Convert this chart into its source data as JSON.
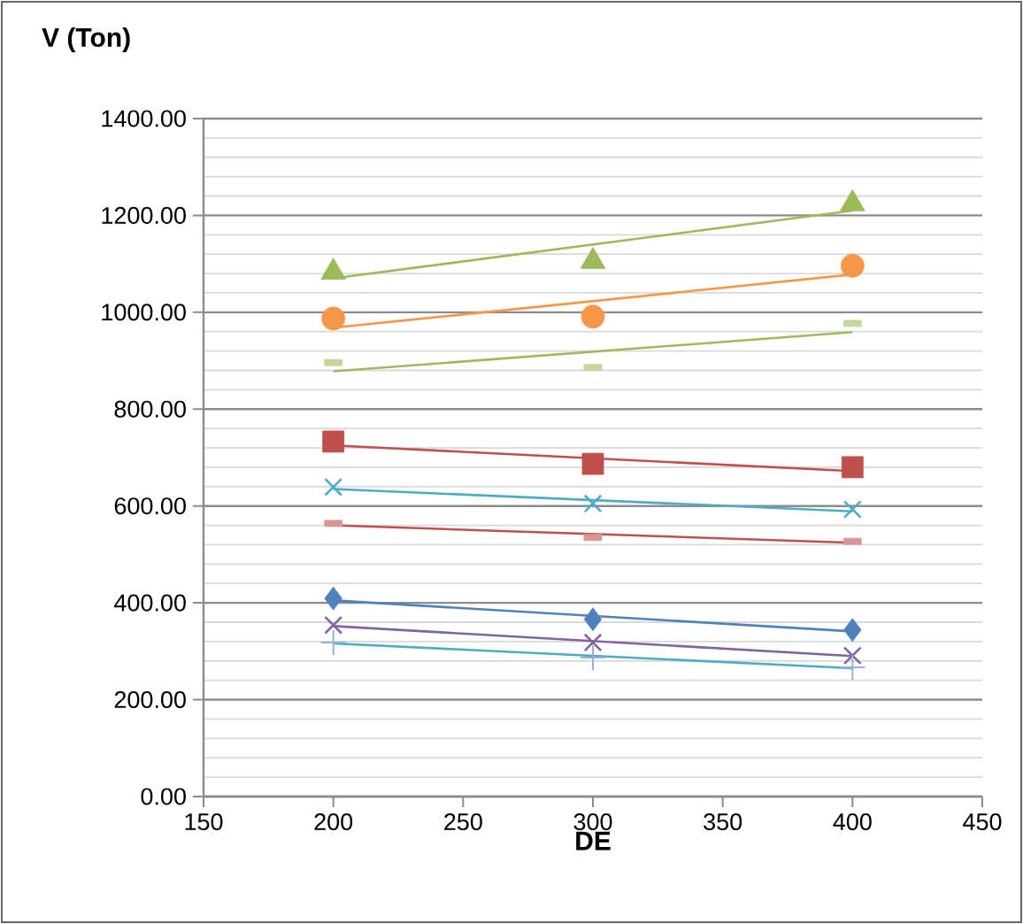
{
  "chart_data": {
    "type": "scatter",
    "ylabel": "V  (Ton)",
    "xlabel": "DE",
    "xlim": [
      150,
      450
    ],
    "xticks": [
      150,
      200,
      250,
      300,
      350,
      400,
      450
    ],
    "ylim": [
      0,
      1400
    ],
    "yticks": [
      {
        "value": 0,
        "label": "0.00"
      },
      {
        "value": 200,
        "label": "200.00"
      },
      {
        "value": 400,
        "label": "400.00"
      },
      {
        "value": 600,
        "label": "600.00"
      },
      {
        "value": 800,
        "label": "800.00"
      },
      {
        "value": 1000,
        "label": "1000.00"
      },
      {
        "value": 1200,
        "label": "1200.00"
      },
      {
        "value": 1400,
        "label": "1400.00"
      }
    ],
    "grid": "y",
    "series": [
      {
        "type": "scatter",
        "marker": "diamond",
        "color": "#4f81bd",
        "x": [
          200,
          300,
          400
        ],
        "values": [
          409,
          366,
          344
        ]
      },
      {
        "type": "scatter",
        "marker": "square",
        "color": "#c0504d",
        "x": [
          200,
          300,
          400
        ],
        "values": [
          733,
          687,
          680
        ]
      },
      {
        "type": "scatter",
        "marker": "triangle",
        "color": "#9bbb59",
        "x": [
          200,
          300,
          400
        ],
        "values": [
          1083,
          1105,
          1224
        ]
      },
      {
        "type": "scatter",
        "marker": "cross",
        "color": "#8064a2",
        "x": [
          200,
          300,
          400
        ],
        "values": [
          354,
          318,
          291
        ]
      },
      {
        "type": "scatter",
        "marker": "cross",
        "color": "#4bacc6",
        "x": [
          200,
          300,
          400
        ],
        "values": [
          639,
          605,
          593
        ]
      },
      {
        "type": "scatter",
        "marker": "circle",
        "color": "#f79646",
        "x": [
          200,
          300,
          400
        ],
        "values": [
          987,
          991,
          1096
        ]
      },
      {
        "marker": "cross",
        "color": "#95b3d7",
        "x": [
          200,
          300,
          400
        ],
        "values": [
          318,
          287,
          267
        ]
      },
      {
        "marker": "square",
        "color": "#d99694",
        "x": [
          200,
          300,
          400
        ],
        "values": [
          564,
          535,
          527
        ]
      },
      {
        "marker": "square",
        "color": "#c3d69b",
        "x": [
          200,
          300,
          400
        ],
        "values": [
          896,
          886,
          977
        ]
      },
      {
        "type": "line",
        "marker": "none",
        "color": "#4f81bd",
        "x": [
          200,
          400
        ],
        "values": [
          405,
          341
        ]
      },
      {
        "type": "line",
        "marker": "none",
        "color": "#c0504d",
        "x": [
          200,
          400
        ],
        "values": [
          725,
          672
        ]
      },
      {
        "type": "line",
        "marker": "none",
        "color": "#9bbb59",
        "x": [
          200,
          400
        ],
        "values": [
          1070,
          1210
        ]
      },
      {
        "type": "line",
        "marker": "none",
        "color": "#8064a2",
        "x": [
          200,
          400
        ],
        "values": [
          352,
          290
        ]
      },
      {
        "type": "line",
        "marker": "none",
        "color": "#4bacc6",
        "x": [
          200,
          400
        ],
        "values": [
          635,
          589
        ]
      },
      {
        "type": "line",
        "marker": "none",
        "color": "#f79646",
        "x": [
          200,
          400
        ],
        "values": [
          968,
          1078
        ]
      },
      {
        "type": "line",
        "marker": "none",
        "color": "#4bacc6",
        "x": [
          200,
          400
        ],
        "values": [
          316,
          265
        ]
      },
      {
        "type": "line",
        "marker": "none",
        "color": "#c0504d",
        "x": [
          200,
          400
        ],
        "values": [
          560,
          524
        ]
      },
      {
        "type": "line",
        "marker": "none",
        "color": "#9bbb59",
        "x": [
          200,
          400
        ],
        "values": [
          878,
          959
        ]
      }
    ]
  }
}
